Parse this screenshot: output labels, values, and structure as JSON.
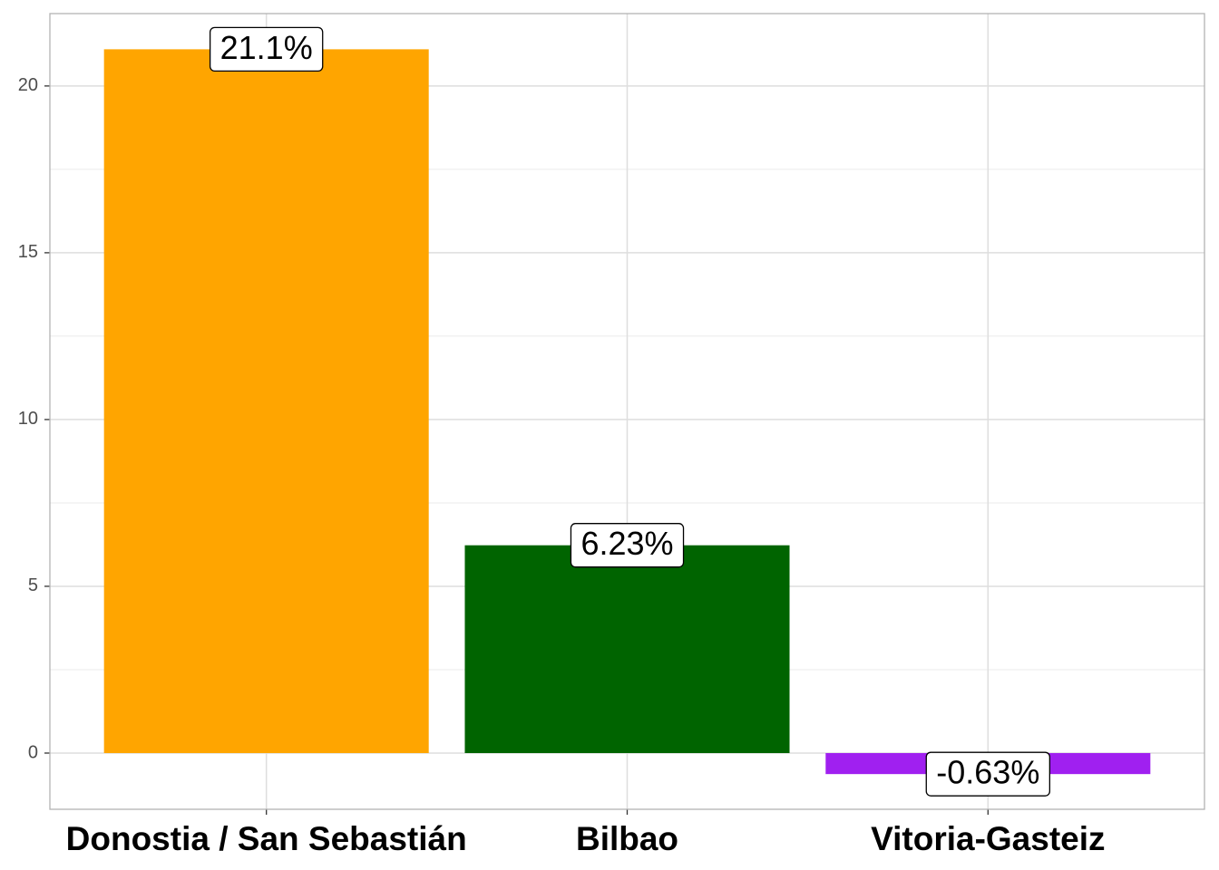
{
  "chart_data": {
    "type": "bar",
    "categories": [
      "Donostia / San Sebastián",
      "Bilbao",
      "Vitoria-Gasteiz"
    ],
    "values": [
      21.1,
      6.23,
      -0.63
    ],
    "value_labels": [
      "21.1%",
      "6.23%",
      "-0.63%"
    ],
    "colors": [
      "#FFA500",
      "#006400",
      "#A020F0"
    ],
    "ylim": [
      -1.685,
      22.17
    ],
    "yticks": [
      0,
      5,
      10,
      15,
      20
    ],
    "yminor": [
      2.5,
      7.5,
      12.5,
      17.5
    ],
    "grid": true
  }
}
